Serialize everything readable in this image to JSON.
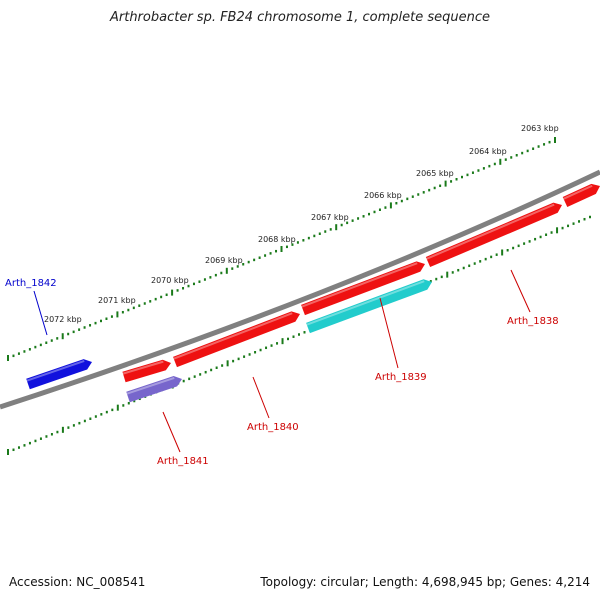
{
  "title": "Arthrobacter sp. FB24 chromosome 1, complete sequence",
  "footer": {
    "accession": "Accession: NC_008541",
    "summary": "Topology: circular; Length: 4,698,945 bp; Genes: 4,214"
  },
  "colors": {
    "backbone": "#808080",
    "tick": "#1a7a1a",
    "label_red": "#cc0000",
    "label_blue": "#0000cc"
  },
  "scale": {
    "labels": [
      "2063 kbp",
      "2064 kbp",
      "2065 kbp",
      "2066 kbp",
      "2067 kbp",
      "2068 kbp",
      "2069 kbp",
      "2070 kbp",
      "2071 kbp",
      "2072 kbp"
    ]
  },
  "genes": [
    {
      "name": "Arth_1838",
      "color": "#ee1111",
      "strand": "forward",
      "label_color": "#cc0000"
    },
    {
      "name": "Arth_1839",
      "color": "#22cccc",
      "strand": "forward",
      "label_color": "#cc0000"
    },
    {
      "name": "Arth_1840",
      "color": "#ee1111",
      "strand": "forward",
      "label_color": "#cc0000"
    },
    {
      "name": "Arth_1841",
      "color": "#7766cc",
      "strand": "forward",
      "label_color": "#cc0000"
    },
    {
      "name": "Arth_1842",
      "color": "#1111dd",
      "strand": "forward",
      "label_color": "#0000cc"
    }
  ]
}
